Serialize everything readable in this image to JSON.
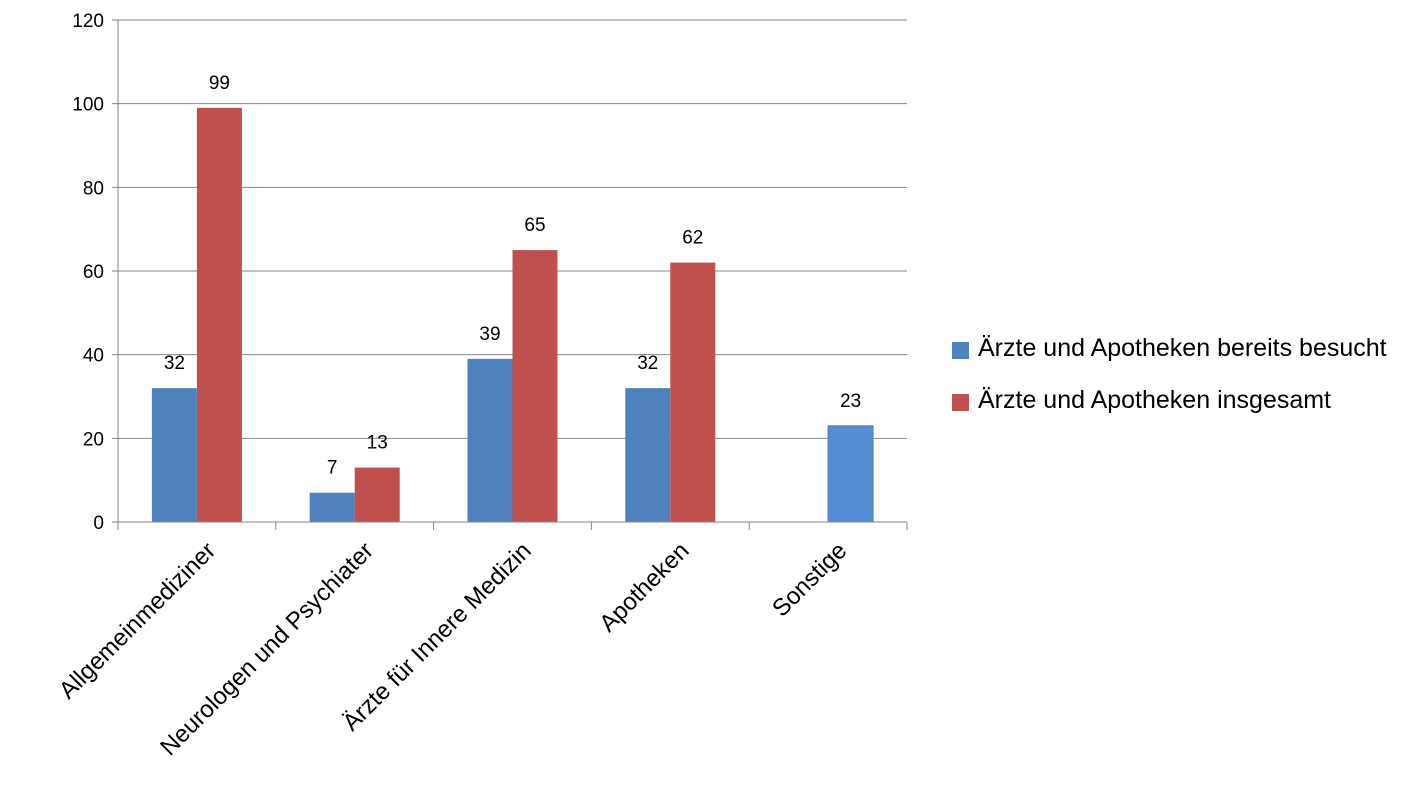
{
  "chart_data": {
    "type": "bar",
    "categories": [
      "Allgemeinmediziner",
      "Neurologen und Psychiater",
      "Ärzte für Innere Medizin",
      "Apotheken",
      "Sonstige"
    ],
    "series": [
      {
        "name": "Ärzte und Apotheken bereits besucht",
        "values": [
          32,
          7,
          39,
          32,
          23
        ],
        "color": "#4F81BD"
      },
      {
        "name": "Ärzte und Apotheken insgesamt",
        "values": [
          99,
          13,
          65,
          62,
          null
        ],
        "color": "#C0504D"
      }
    ],
    "ylim": [
      0,
      120
    ],
    "yticks": [
      0,
      20,
      40,
      60,
      80,
      100,
      120
    ],
    "grid": true,
    "legend_position": "right",
    "title": "",
    "xlabel": "",
    "ylabel": ""
  }
}
